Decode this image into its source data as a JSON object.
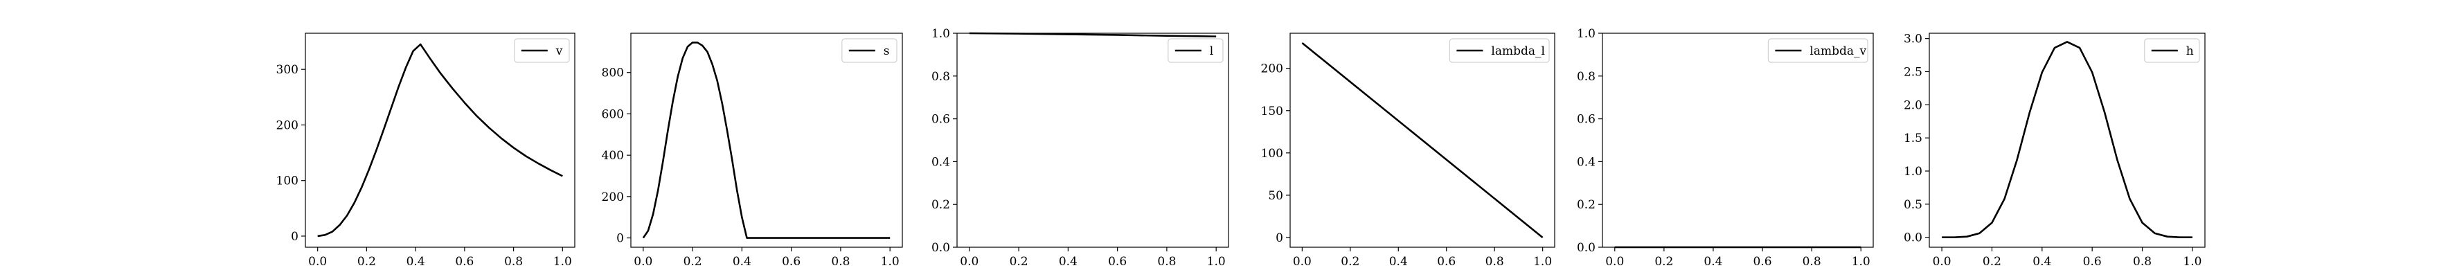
{
  "figure": {
    "background": "#ffffff",
    "line_color": "#000000"
  },
  "chart_data": [
    {
      "type": "line",
      "legend": "v",
      "legend_placement": "upper-right",
      "xlim": [
        -0.05,
        1.05
      ],
      "ylim": [
        -20,
        365
      ],
      "xticks": [
        0.0,
        0.2,
        0.4,
        0.6,
        0.8,
        1.0
      ],
      "xtick_labels": [
        "0.0",
        "0.2",
        "0.4",
        "0.6",
        "0.8",
        "1.0"
      ],
      "yticks": [
        0,
        100,
        200,
        300
      ],
      "ytick_labels": [
        "0",
        "100",
        "200",
        "300"
      ],
      "grid": false,
      "series": [
        {
          "name": "v",
          "x": [
            0.0,
            0.03,
            0.06,
            0.09,
            0.12,
            0.15,
            0.18,
            0.21,
            0.24,
            0.27,
            0.3,
            0.33,
            0.36,
            0.39,
            0.42,
            0.46,
            0.5,
            0.55,
            0.6,
            0.65,
            0.7,
            0.75,
            0.8,
            0.85,
            0.9,
            0.95,
            1.0
          ],
          "y": [
            0,
            2,
            8,
            20,
            37,
            60,
            88,
            120,
            155,
            192,
            230,
            268,
            303,
            333,
            345,
            319,
            294,
            266,
            240,
            216,
            195,
            176,
            159,
            144,
            131,
            119,
            108
          ]
        }
      ]
    },
    {
      "type": "line",
      "legend": "s",
      "legend_placement": "upper-right",
      "xlim": [
        -0.05,
        1.05
      ],
      "ylim": [
        -45,
        990
      ],
      "xticks": [
        0.0,
        0.2,
        0.4,
        0.6,
        0.8,
        1.0
      ],
      "xtick_labels": [
        "0.0",
        "0.2",
        "0.4",
        "0.6",
        "0.8",
        "1.0"
      ],
      "yticks": [
        0,
        200,
        400,
        600,
        800
      ],
      "ytick_labels": [
        "0",
        "200",
        "400",
        "600",
        "800"
      ],
      "grid": false,
      "series": [
        {
          "name": "s",
          "x": [
            0.0,
            0.02,
            0.04,
            0.06,
            0.08,
            0.1,
            0.12,
            0.14,
            0.16,
            0.18,
            0.2,
            0.22,
            0.24,
            0.26,
            0.28,
            0.3,
            0.32,
            0.34,
            0.36,
            0.38,
            0.4,
            0.42,
            0.44,
            0.5,
            0.6,
            0.7,
            0.8,
            0.9,
            1.0
          ],
          "y": [
            0,
            35,
            115,
            230,
            370,
            520,
            660,
            780,
            870,
            925,
            945,
            945,
            930,
            900,
            840,
            760,
            650,
            520,
            380,
            230,
            100,
            0,
            0,
            0,
            0,
            0,
            0,
            0,
            0
          ]
        }
      ]
    },
    {
      "type": "line",
      "legend": "l",
      "legend_placement": "upper-right",
      "xlim": [
        -0.05,
        1.05
      ],
      "ylim": [
        0.0,
        1.0
      ],
      "xticks": [
        0.0,
        0.2,
        0.4,
        0.6,
        0.8,
        1.0
      ],
      "xtick_labels": [
        "0.0",
        "0.2",
        "0.4",
        "0.6",
        "0.8",
        "1.0"
      ],
      "yticks": [
        0.0,
        0.2,
        0.4,
        0.6,
        0.8,
        1.0
      ],
      "ytick_labels": [
        "0.0",
        "0.2",
        "0.4",
        "0.6",
        "0.8",
        "1.0"
      ],
      "grid": false,
      "series": [
        {
          "name": "l",
          "x": [
            0.0,
            0.2,
            0.4,
            0.6,
            0.8,
            1.0
          ],
          "y": [
            1.0,
            0.998,
            0.995,
            0.992,
            0.988,
            0.985
          ]
        }
      ]
    },
    {
      "type": "line",
      "legend": "lambda_l",
      "legend_placement": "upper-right",
      "xlim": [
        -0.05,
        1.05
      ],
      "ylim": [
        -11.5,
        241.5
      ],
      "xticks": [
        0.0,
        0.2,
        0.4,
        0.6,
        0.8,
        1.0
      ],
      "xtick_labels": [
        "0.0",
        "0.2",
        "0.4",
        "0.6",
        "0.8",
        "1.0"
      ],
      "yticks": [
        0,
        50,
        100,
        150,
        200
      ],
      "ytick_labels": [
        "0",
        "50",
        "100",
        "150",
        "200"
      ],
      "grid": false,
      "series": [
        {
          "name": "lambda_l",
          "x": [
            0.0,
            1.0
          ],
          "y": [
            230,
            0
          ]
        }
      ]
    },
    {
      "type": "line",
      "legend": "lambda_v",
      "legend_placement": "upper-right",
      "xlim": [
        -0.05,
        1.05
      ],
      "ylim": [
        0.0,
        1.0
      ],
      "xticks": [
        0.0,
        0.2,
        0.4,
        0.6,
        0.8,
        1.0
      ],
      "xtick_labels": [
        "0.0",
        "0.2",
        "0.4",
        "0.6",
        "0.8",
        "1.0"
      ],
      "yticks": [
        0.0,
        0.2,
        0.4,
        0.6,
        0.8,
        1.0
      ],
      "ytick_labels": [
        "0.0",
        "0.2",
        "0.4",
        "0.6",
        "0.8",
        "1.0"
      ],
      "grid": false,
      "series": [
        {
          "name": "lambda_v",
          "x": [
            0.0,
            1.0
          ],
          "y": [
            0.0,
            0.0
          ]
        }
      ]
    },
    {
      "type": "line",
      "legend": "h",
      "legend_placement": "upper-right",
      "xlim": [
        -0.05,
        1.05
      ],
      "ylim": [
        -0.15,
        3.08
      ],
      "xticks": [
        0.0,
        0.2,
        0.4,
        0.6,
        0.8,
        1.0
      ],
      "xtick_labels": [
        "0.0",
        "0.2",
        "0.4",
        "0.6",
        "0.8",
        "1.0"
      ],
      "yticks": [
        0.0,
        0.5,
        1.0,
        1.5,
        2.0,
        2.5,
        3.0
      ],
      "ytick_labels": [
        "0.0",
        "0.5",
        "1.0",
        "1.5",
        "2.0",
        "2.5",
        "3.0"
      ],
      "grid": false,
      "series": [
        {
          "name": "h",
          "x": [
            0.0,
            0.05,
            0.1,
            0.15,
            0.2,
            0.25,
            0.3,
            0.35,
            0.4,
            0.45,
            0.5,
            0.55,
            0.6,
            0.65,
            0.7,
            0.75,
            0.8,
            0.85,
            0.9,
            0.95,
            1.0
          ],
          "y": [
            0.0,
            0.0,
            0.01,
            0.06,
            0.22,
            0.58,
            1.17,
            1.88,
            2.49,
            2.86,
            2.95,
            2.86,
            2.49,
            1.88,
            1.17,
            0.58,
            0.22,
            0.06,
            0.01,
            0.0,
            0.0
          ]
        }
      ]
    }
  ]
}
